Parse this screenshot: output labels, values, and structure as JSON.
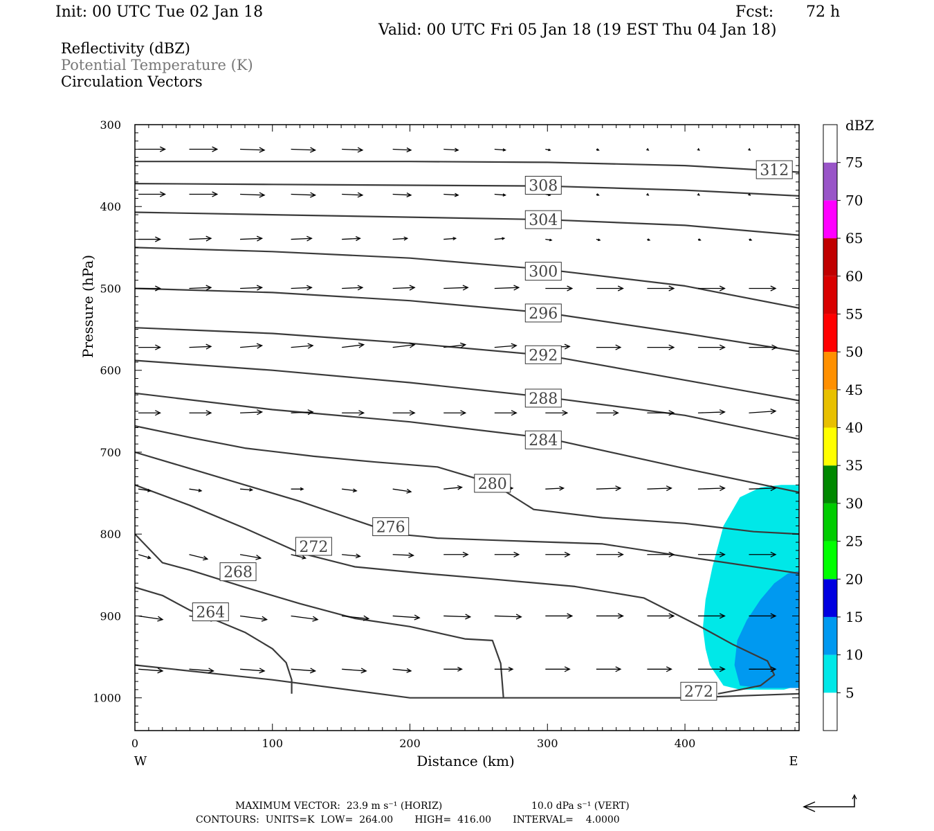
{
  "header": {
    "init": "Init: 00 UTC Tue 02 Jan 18",
    "fcst_label": "Fcst:",
    "fcst_value": "72 h",
    "valid": "Valid: 00 UTC Fri 05 Jan 18 (19 EST Thu 04 Jan 18)"
  },
  "legend": {
    "line1": "Reflectivity (dBZ)",
    "line2": "Potential Temperature (K)",
    "line3": "Circulation Vectors",
    "line1_color": "#000000",
    "line2_color": "#777777",
    "line3_color": "#000000"
  },
  "footer": {
    "max_vector_horiz": "MAXIMUM VECTOR:  23.9 m s⁻¹ (HORIZ)",
    "max_vector_vert": "10.0 dPa s⁻¹ (VERT)",
    "contours": "CONTOURS:  UNITS=K  LOW=  264.00       HIGH=  416.00       INTERVAL=    4.0000"
  },
  "chart_data": {
    "type": "cross-section",
    "xlabel": "Distance (km)",
    "ylabel": "Pressure (hPa)",
    "xlim": [
      0,
      483
    ],
    "ylim": [
      1040,
      300
    ],
    "x_ticks": [
      0,
      100,
      200,
      300,
      400
    ],
    "y_ticks": [
      300,
      400,
      500,
      600,
      700,
      800,
      900,
      1000
    ],
    "x_end_labels": {
      "left": "W",
      "right": "E"
    },
    "colorbar": {
      "title": "dBZ",
      "levels": [
        5,
        10,
        15,
        20,
        25,
        30,
        35,
        40,
        45,
        50,
        55,
        60,
        65,
        70,
        75
      ],
      "colors": [
        "#00e8e8",
        "#0099f0",
        "#0000e0",
        "#00ff00",
        "#00cc00",
        "#008800",
        "#ffff00",
        "#e8c000",
        "#ff9000",
        "#ff0000",
        "#d80000",
        "#c00000",
        "#ff00ff",
        "#9955c8",
        "#ffffff"
      ]
    },
    "reflectivity_regions": [
      {
        "dbz_min": 5,
        "color": "#00e8e8",
        "x": [
          483,
          483,
          472,
          455,
          440,
          428,
          424,
          418,
          415,
          413,
          415,
          420,
          428,
          440,
          455,
          470,
          483
        ],
        "p": [
          750,
          985,
          990,
          990,
          990,
          985,
          975,
          960,
          940,
          915,
          880,
          840,
          790,
          755,
          743,
          740,
          740
        ]
      },
      {
        "dbz_min": 10,
        "color": "#0099f0",
        "x": [
          483,
          483,
          470,
          455,
          440,
          436,
          438,
          445,
          455,
          465,
          475,
          483
        ],
        "p": [
          845,
          988,
          988,
          988,
          985,
          960,
          930,
          905,
          880,
          860,
          848,
          845
        ]
      }
    ],
    "theta_contours": [
      {
        "value": 312,
        "x": [
          0,
          100,
          200,
          300,
          400,
          483
        ],
        "p": [
          345,
          345,
          345,
          346,
          350,
          358
        ],
        "label_at": [
          465,
          355
        ]
      },
      {
        "value": 308,
        "x": [
          0,
          100,
          200,
          300,
          400,
          483
        ],
        "p": [
          372,
          373,
          374,
          375,
          380,
          387
        ],
        "label_at": [
          297,
          374
        ]
      },
      {
        "value": 304,
        "x": [
          0,
          100,
          200,
          300,
          400,
          483
        ],
        "p": [
          407,
          410,
          413,
          416,
          423,
          435
        ],
        "label_at": [
          297,
          416
        ]
      },
      {
        "value": 300,
        "x": [
          0,
          100,
          200,
          300,
          400,
          483
        ],
        "p": [
          450,
          455,
          463,
          477,
          497,
          524
        ],
        "label_at": [
          297,
          479
        ]
      },
      {
        "value": 296,
        "x": [
          0,
          100,
          200,
          300,
          400,
          483
        ],
        "p": [
          500,
          505,
          515,
          530,
          555,
          577
        ],
        "label_at": [
          297,
          530
        ]
      },
      {
        "value": 292,
        "x": [
          0,
          100,
          200,
          300,
          400,
          483
        ],
        "p": [
          548,
          555,
          567,
          582,
          612,
          637
        ],
        "label_at": [
          297,
          581
        ]
      },
      {
        "value": 288,
        "x": [
          0,
          100,
          200,
          300,
          400,
          483
        ],
        "p": [
          588,
          600,
          615,
          633,
          655,
          684
        ],
        "label_at": [
          297,
          634
        ]
      },
      {
        "value": 284,
        "x": [
          0,
          100,
          200,
          300,
          400,
          483
        ],
        "p": [
          628,
          648,
          663,
          683,
          720,
          749
        ],
        "label_at": [
          297,
          685
        ]
      },
      {
        "value": 280,
        "x": [
          0,
          40,
          80,
          130,
          175,
          220,
          260,
          290,
          340,
          400,
          450,
          483
        ],
        "p": [
          668,
          682,
          695,
          705,
          712,
          718,
          738,
          770,
          780,
          787,
          797,
          800
        ],
        "label_at": [
          260,
          738
        ]
      },
      {
        "value": 276,
        "x": [
          0,
          40,
          80,
          120,
          160,
          190,
          210,
          220,
          270,
          340,
          410,
          483
        ],
        "p": [
          700,
          720,
          740,
          760,
          783,
          800,
          803,
          805,
          808,
          812,
          830,
          848
        ],
        "label_at": [
          186,
          791
        ]
      },
      {
        "value": 272,
        "x": [
          0,
          40,
          80,
          120,
          160,
          210,
          260,
          320,
          370,
          410,
          435,
          460,
          465,
          455,
          440,
          424
        ],
        "p": [
          740,
          765,
          793,
          823,
          840,
          848,
          855,
          864,
          878,
          912,
          935,
          955,
          972,
          985,
          990,
          995
        ],
        "label_at": [
          130,
          815
        ]
      },
      {
        "value": 268,
        "x": [
          0,
          20,
          40,
          80,
          120,
          160,
          200,
          240,
          260,
          266,
          268
        ],
        "p": [
          800,
          835,
          844,
          865,
          885,
          903,
          913,
          928,
          930,
          958,
          1000
        ],
        "label_at": [
          75,
          846
        ]
      },
      {
        "value": 264,
        "x": [
          0,
          20,
          40,
          60,
          80,
          100,
          110,
          114,
          114
        ],
        "p": [
          865,
          875,
          893,
          906,
          920,
          940,
          957,
          978,
          995
        ],
        "label_at": [
          55,
          895
        ]
      },
      {
        "value": 272,
        "x": [
          0,
          100,
          200,
          250,
          300,
          400,
          483
        ],
        "p": [
          960,
          978,
          1000,
          1000,
          1000,
          1000,
          995
        ],
        "label_at": [
          410,
          992
        ]
      }
    ],
    "vector_rows": [
      {
        "p": 330,
        "x": [
          0,
          37,
          74,
          111,
          148,
          185,
          222,
          259,
          296,
          333,
          370,
          407,
          444
        ],
        "u": [
          22,
          23,
          20,
          20,
          17,
          15,
          12,
          9,
          4,
          2,
          1,
          1,
          1
        ],
        "w": [
          0,
          0,
          1,
          1,
          1,
          1,
          1,
          1,
          1,
          1,
          1,
          1,
          1
        ]
      },
      {
        "p": 385,
        "x": [
          0,
          37,
          74,
          111,
          148,
          185,
          222,
          259,
          296,
          333,
          370,
          407,
          444
        ],
        "u": [
          22,
          23,
          20,
          20,
          17,
          15,
          12,
          9,
          4,
          2,
          1,
          1,
          1
        ],
        "w": [
          0,
          0,
          1,
          1,
          1,
          1,
          1,
          1,
          1,
          1,
          1,
          1,
          1
        ]
      },
      {
        "p": 440,
        "x": [
          0,
          37,
          74,
          111,
          148,
          185,
          222,
          259,
          296,
          333,
          370,
          407,
          444
        ],
        "u": [
          18,
          18,
          18,
          17,
          15,
          12,
          10,
          8,
          5,
          3,
          2,
          2,
          2
        ],
        "w": [
          0,
          -1,
          -1,
          -1,
          -1,
          -1,
          -1,
          -1,
          1,
          1,
          1,
          1,
          1
        ]
      },
      {
        "p": 500,
        "x": [
          0,
          37,
          74,
          111,
          148,
          185,
          222,
          259,
          296,
          333,
          370,
          407,
          444
        ],
        "u": [
          18,
          18,
          18,
          17,
          17,
          18,
          20,
          20,
          22,
          22,
          22,
          22,
          22
        ],
        "w": [
          0,
          -1,
          -1,
          -1,
          -1,
          -1,
          -1,
          -1,
          0,
          0,
          0,
          0,
          0
        ]
      },
      {
        "p": 572,
        "x": [
          0,
          37,
          74,
          111,
          148,
          185,
          222,
          259,
          296,
          333,
          370,
          407,
          444
        ],
        "u": [
          18,
          18,
          18,
          18,
          18,
          18,
          18,
          18,
          20,
          20,
          22,
          22,
          23
        ],
        "w": [
          0,
          -1,
          -2,
          -2,
          -3,
          -3,
          -3,
          -2,
          -1,
          0,
          0,
          0,
          0
        ]
      },
      {
        "p": 652,
        "x": [
          0,
          37,
          74,
          111,
          148,
          185,
          222,
          259,
          296,
          333,
          370,
          407,
          444
        ],
        "u": [
          18,
          18,
          18,
          18,
          18,
          18,
          18,
          18,
          18,
          18,
          22,
          22,
          22
        ],
        "w": [
          0,
          0,
          -1,
          -1,
          0,
          0,
          0,
          0,
          0,
          0,
          0,
          -1,
          -2
        ]
      },
      {
        "p": 745,
        "x": [
          0,
          37,
          74,
          111,
          148,
          185,
          222,
          259,
          296,
          333,
          370,
          407,
          444
        ],
        "u": [
          10,
          10,
          10,
          10,
          12,
          15,
          15,
          15,
          15,
          20,
          20,
          22,
          22
        ],
        "w": [
          2,
          2,
          1,
          0,
          2,
          3,
          -2,
          -1,
          -1,
          -1,
          -1,
          -1,
          -1
        ]
      },
      {
        "p": 825,
        "x": [
          0,
          37,
          74,
          111,
          148,
          185,
          222,
          259,
          296,
          333,
          370,
          407,
          444
        ],
        "u": [
          10,
          15,
          17,
          12,
          15,
          17,
          20,
          20,
          20,
          22,
          22,
          22,
          22
        ],
        "w": [
          4,
          5,
          4,
          4,
          2,
          1,
          0,
          0,
          0,
          0,
          0,
          0,
          0
        ]
      },
      {
        "p": 900,
        "x": [
          0,
          37,
          74,
          111,
          148,
          185,
          222,
          259,
          296,
          333,
          370,
          407,
          444
        ],
        "u": [
          20,
          22,
          22,
          22,
          22,
          22,
          22,
          22,
          22,
          22,
          22,
          22,
          22
        ],
        "w": [
          4,
          4,
          4,
          4,
          3,
          2,
          1,
          1,
          0,
          0,
          0,
          0,
          0
        ]
      },
      {
        "p": 965,
        "x": [
          0,
          37,
          74,
          111,
          148,
          185,
          222,
          259,
          296,
          333,
          370,
          407,
          444
        ],
        "u": [
          20,
          20,
          20,
          20,
          20,
          15,
          15,
          15,
          20,
          20,
          20,
          22,
          22
        ],
        "w": [
          2,
          2,
          2,
          2,
          2,
          2,
          0,
          0,
          0,
          0,
          0,
          0,
          0
        ]
      }
    ]
  }
}
